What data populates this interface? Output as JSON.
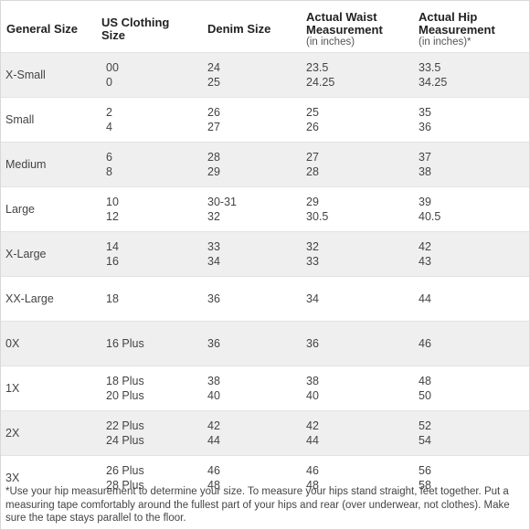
{
  "headers": {
    "general": [
      "General Size"
    ],
    "us": [
      "US Clothing",
      "Size"
    ],
    "denim": [
      "Denim Size"
    ],
    "waist": [
      "Actual Waist",
      "Measurement"
    ],
    "waist_sub": "(in inches)",
    "hip": [
      "Actual Hip",
      "Measurement"
    ],
    "hip_sub": "(in inches)*"
  },
  "rows": [
    {
      "general": "X-Small",
      "us": [
        "00",
        "0"
      ],
      "denim": [
        "24",
        "25"
      ],
      "waist": [
        "23.5",
        "24.25"
      ],
      "hip": [
        "33.5",
        "34.25"
      ],
      "shaded": true
    },
    {
      "general": "Small",
      "us": [
        "2",
        "4"
      ],
      "denim": [
        "26",
        "27"
      ],
      "waist": [
        "25",
        "26"
      ],
      "hip": [
        "35",
        "36"
      ],
      "shaded": false
    },
    {
      "general": "Medium",
      "us": [
        "6",
        "8"
      ],
      "denim": [
        "28",
        "29"
      ],
      "waist": [
        "27",
        "28"
      ],
      "hip": [
        "37",
        "38"
      ],
      "shaded": true
    },
    {
      "general": "Large",
      "us": [
        "10",
        "12"
      ],
      "denim": [
        "30-31",
        "32"
      ],
      "waist": [
        "29",
        "30.5"
      ],
      "hip": [
        "39",
        "40.5"
      ],
      "shaded": false
    },
    {
      "general": "X-Large",
      "us": [
        "14",
        "16"
      ],
      "denim": [
        "33",
        "34"
      ],
      "waist": [
        "32",
        "33"
      ],
      "hip": [
        "42",
        "43"
      ],
      "shaded": true
    },
    {
      "general": "XX-Large",
      "us": [
        "18"
      ],
      "denim": [
        "36"
      ],
      "waist": [
        "34"
      ],
      "hip": [
        "44"
      ],
      "shaded": false
    },
    {
      "general": "0X",
      "us": [
        "16 Plus"
      ],
      "denim": [
        "36"
      ],
      "waist": [
        "36"
      ],
      "hip": [
        "46"
      ],
      "shaded": true
    },
    {
      "general": "1X",
      "us": [
        "18 Plus",
        "20 Plus"
      ],
      "denim": [
        "38",
        "40"
      ],
      "waist": [
        "38",
        "40"
      ],
      "hip": [
        "48",
        "50"
      ],
      "shaded": false
    },
    {
      "general": "2X",
      "us": [
        "22 Plus",
        "24 Plus"
      ],
      "denim": [
        "42",
        "44"
      ],
      "waist": [
        "42",
        "44"
      ],
      "hip": [
        "52",
        "54"
      ],
      "shaded": true
    },
    {
      "general": "3X",
      "us": [
        "26 Plus",
        "28 Plus"
      ],
      "denim": [
        "46",
        "48"
      ],
      "waist": [
        "46",
        "48"
      ],
      "hip": [
        "56",
        "58"
      ],
      "shaded": false
    }
  ],
  "footnote": "*Use your hip measurement to determine your size. To measure your hips stand straight, feet together. Put a measuring tape comfortably around the fullest part of your hips and rear (over underwear, not clothes). Make sure the tape stays parallel to the floor."
}
